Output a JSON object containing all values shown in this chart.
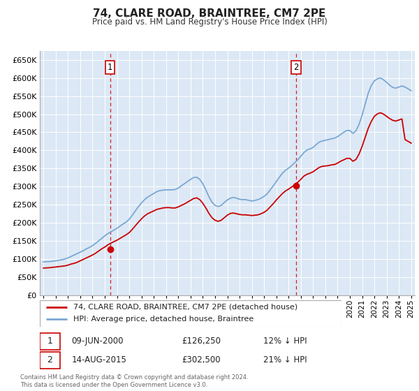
{
  "title": "74, CLARE ROAD, BRAINTREE, CM7 2PE",
  "subtitle": "Price paid vs. HM Land Registry's House Price Index (HPI)",
  "ytick_values": [
    0,
    50000,
    100000,
    150000,
    200000,
    250000,
    300000,
    350000,
    400000,
    450000,
    500000,
    550000,
    600000,
    650000
  ],
  "ylim": [
    0,
    675000
  ],
  "xlim_start": 1994.7,
  "xlim_end": 2025.3,
  "sale1_x": 2000.44,
  "sale1_y": 126250,
  "sale2_x": 2015.62,
  "sale2_y": 302500,
  "sale1_label": "09-JUN-2000",
  "sale1_price": "£126,250",
  "sale1_hpi": "12% ↓ HPI",
  "sale2_label": "14-AUG-2015",
  "sale2_price": "£302,500",
  "sale2_hpi": "21% ↓ HPI",
  "legend_label1": "74, CLARE ROAD, BRAINTREE, CM7 2PE (detached house)",
  "legend_label2": "HPI: Average price, detached house, Braintree",
  "footer": "Contains HM Land Registry data © Crown copyright and database right 2024.\nThis data is licensed under the Open Government Licence v3.0.",
  "hpi_color": "#7aa8d4",
  "price_color": "#cc0000",
  "dashed_line_color": "#cc0000",
  "plot_bg_color": "#dce8f5",
  "background_color": "#ffffff",
  "grid_color": "#ffffff",
  "hpi_data_x": [
    1995.0,
    1995.25,
    1995.5,
    1995.75,
    1996.0,
    1996.25,
    1996.5,
    1996.75,
    1997.0,
    1997.25,
    1997.5,
    1997.75,
    1998.0,
    1998.25,
    1998.5,
    1998.75,
    1999.0,
    1999.25,
    1999.5,
    1999.75,
    2000.0,
    2000.25,
    2000.5,
    2000.75,
    2001.0,
    2001.25,
    2001.5,
    2001.75,
    2002.0,
    2002.25,
    2002.5,
    2002.75,
    2003.0,
    2003.25,
    2003.5,
    2003.75,
    2004.0,
    2004.25,
    2004.5,
    2004.75,
    2005.0,
    2005.25,
    2005.5,
    2005.75,
    2006.0,
    2006.25,
    2006.5,
    2006.75,
    2007.0,
    2007.25,
    2007.5,
    2007.75,
    2008.0,
    2008.25,
    2008.5,
    2008.75,
    2009.0,
    2009.25,
    2009.5,
    2009.75,
    2010.0,
    2010.25,
    2010.5,
    2010.75,
    2011.0,
    2011.25,
    2011.5,
    2011.75,
    2012.0,
    2012.25,
    2012.5,
    2012.75,
    2013.0,
    2013.25,
    2013.5,
    2013.75,
    2014.0,
    2014.25,
    2014.5,
    2014.75,
    2015.0,
    2015.25,
    2015.5,
    2015.75,
    2016.0,
    2016.25,
    2016.5,
    2016.75,
    2017.0,
    2017.25,
    2017.5,
    2017.75,
    2018.0,
    2018.25,
    2018.5,
    2018.75,
    2019.0,
    2019.25,
    2019.5,
    2019.75,
    2020.0,
    2020.25,
    2020.5,
    2020.75,
    2021.0,
    2021.25,
    2021.5,
    2021.75,
    2022.0,
    2022.25,
    2022.5,
    2022.75,
    2023.0,
    2023.25,
    2023.5,
    2023.75,
    2024.0,
    2024.25,
    2024.5,
    2024.75,
    2025.0
  ],
  "hpi_data_y": [
    92000,
    92500,
    93000,
    94000,
    95000,
    96500,
    98000,
    100000,
    103000,
    107000,
    111000,
    115000,
    119000,
    123000,
    128000,
    132000,
    137000,
    143000,
    150000,
    157000,
    164000,
    170000,
    175000,
    180000,
    185000,
    191000,
    197000,
    202000,
    210000,
    221000,
    233000,
    245000,
    255000,
    264000,
    271000,
    276000,
    281000,
    286000,
    289000,
    290000,
    291000,
    291000,
    291000,
    292000,
    296000,
    302000,
    308000,
    314000,
    320000,
    325000,
    326000,
    320000,
    308000,
    291000,
    272000,
    257000,
    248000,
    245000,
    248000,
    256000,
    263000,
    268000,
    270000,
    268000,
    265000,
    264000,
    264000,
    262000,
    260000,
    262000,
    264000,
    268000,
    273000,
    280000,
    291000,
    302000,
    314000,
    326000,
    337000,
    345000,
    351000,
    358000,
    366000,
    374000,
    384000,
    394000,
    401000,
    404000,
    408000,
    416000,
    423000,
    426000,
    428000,
    430000,
    432000,
    434000,
    438000,
    444000,
    450000,
    455000,
    455000,
    447000,
    454000,
    472000,
    497000,
    528000,
    558000,
    579000,
    592000,
    598000,
    600000,
    595000,
    588000,
    580000,
    574000,
    572000,
    575000,
    578000,
    575000,
    570000,
    565000
  ],
  "price_data_x": [
    1995.0,
    1995.25,
    1995.5,
    1995.75,
    1996.0,
    1996.25,
    1996.5,
    1996.75,
    1997.0,
    1997.25,
    1997.5,
    1997.75,
    1998.0,
    1998.25,
    1998.5,
    1998.75,
    1999.0,
    1999.25,
    1999.5,
    1999.75,
    2000.0,
    2000.25,
    2000.5,
    2000.75,
    2001.0,
    2001.25,
    2001.5,
    2001.75,
    2002.0,
    2002.25,
    2002.5,
    2002.75,
    2003.0,
    2003.25,
    2003.5,
    2003.75,
    2004.0,
    2004.25,
    2004.5,
    2004.75,
    2005.0,
    2005.25,
    2005.5,
    2005.75,
    2006.0,
    2006.25,
    2006.5,
    2006.75,
    2007.0,
    2007.25,
    2007.5,
    2007.75,
    2008.0,
    2008.25,
    2008.5,
    2008.75,
    2009.0,
    2009.25,
    2009.5,
    2009.75,
    2010.0,
    2010.25,
    2010.5,
    2010.75,
    2011.0,
    2011.25,
    2011.5,
    2011.75,
    2012.0,
    2012.25,
    2012.5,
    2012.75,
    2013.0,
    2013.25,
    2013.5,
    2013.75,
    2014.0,
    2014.25,
    2014.5,
    2014.75,
    2015.0,
    2015.25,
    2015.5,
    2015.75,
    2016.0,
    2016.25,
    2016.5,
    2016.75,
    2017.0,
    2017.25,
    2017.5,
    2017.75,
    2018.0,
    2018.25,
    2018.5,
    2018.75,
    2019.0,
    2019.25,
    2019.5,
    2019.75,
    2020.0,
    2020.25,
    2020.5,
    2020.75,
    2021.0,
    2021.25,
    2021.5,
    2021.75,
    2022.0,
    2022.25,
    2022.5,
    2022.75,
    2023.0,
    2023.25,
    2023.5,
    2023.75,
    2024.0,
    2024.25,
    2024.5,
    2024.75,
    2025.0
  ],
  "price_data_y": [
    75000,
    75500,
    76000,
    77000,
    78000,
    79000,
    80000,
    81000,
    83000,
    86000,
    88000,
    91000,
    95000,
    99000,
    103000,
    107000,
    111000,
    116000,
    122000,
    128000,
    133000,
    139000,
    144000,
    148000,
    152000,
    157000,
    162000,
    167000,
    173000,
    182000,
    192000,
    202000,
    211000,
    219000,
    225000,
    229000,
    233000,
    237000,
    239000,
    241000,
    242000,
    242000,
    241000,
    241000,
    244000,
    248000,
    252000,
    257000,
    262000,
    267000,
    269000,
    264000,
    254000,
    241000,
    226000,
    214000,
    207000,
    204000,
    207000,
    214000,
    221000,
    226000,
    227000,
    225000,
    223000,
    222000,
    222000,
    221000,
    220000,
    221000,
    222000,
    225000,
    229000,
    235000,
    244000,
    253000,
    263000,
    272000,
    281000,
    288000,
    293000,
    299000,
    305000,
    312000,
    320000,
    329000,
    334000,
    337000,
    341000,
    347000,
    353000,
    356000,
    357000,
    358000,
    360000,
    361000,
    365000,
    370000,
    374000,
    378000,
    378000,
    370000,
    375000,
    390000,
    411000,
    436000,
    461000,
    480000,
    494000,
    501000,
    504000,
    500000,
    494000,
    488000,
    483000,
    481000,
    484000,
    487000,
    430000,
    425000,
    420000
  ]
}
